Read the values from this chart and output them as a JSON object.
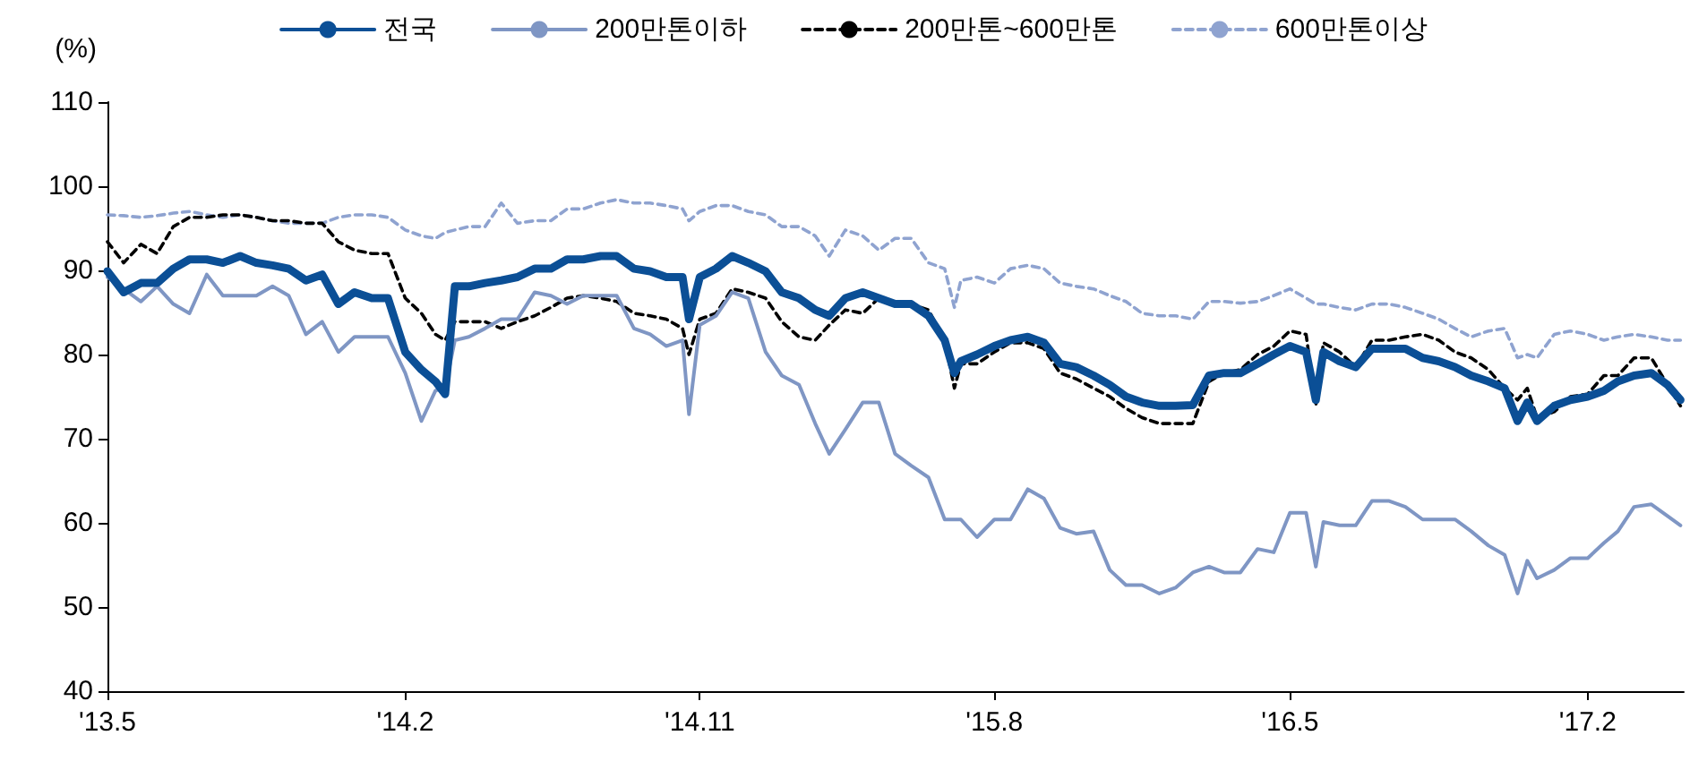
{
  "chart_data": {
    "type": "line",
    "ylabel": "(%)",
    "x": [
      "2013-05-01",
      "2013-05-16",
      "2013-06-01",
      "2013-06-16",
      "2013-07-01",
      "2013-07-16",
      "2013-08-01",
      "2013-08-16",
      "2013-09-01",
      "2013-09-16",
      "2013-10-01",
      "2013-10-16",
      "2013-11-01",
      "2013-11-16",
      "2013-12-01",
      "2013-12-16",
      "2014-01-01",
      "2014-01-16",
      "2014-02-01",
      "2014-02-16",
      "2014-03-01",
      "2014-03-10",
      "2014-03-19",
      "2014-04-01",
      "2014-04-16",
      "2014-05-01",
      "2014-05-16",
      "2014-06-01",
      "2014-06-16",
      "2014-07-01",
      "2014-07-16",
      "2014-08-01",
      "2014-08-16",
      "2014-09-01",
      "2014-09-16",
      "2014-10-01",
      "2014-10-16",
      "2014-10-22",
      "2014-11-01",
      "2014-11-16",
      "2014-12-01",
      "2014-12-16",
      "2015-01-01",
      "2015-01-16",
      "2015-02-01",
      "2015-02-16",
      "2015-03-01",
      "2015-03-16",
      "2015-04-01",
      "2015-04-16",
      "2015-05-01",
      "2015-05-16",
      "2015-06-01",
      "2015-06-16",
      "2015-06-25",
      "2015-07-01",
      "2015-07-16",
      "2015-08-01",
      "2015-08-16",
      "2015-09-01",
      "2015-09-16",
      "2015-10-01",
      "2015-10-16",
      "2015-11-01",
      "2015-11-16",
      "2015-12-01",
      "2015-12-16",
      "2016-01-01",
      "2016-01-16",
      "2016-02-01",
      "2016-02-16",
      "2016-03-01",
      "2016-03-16",
      "2016-04-01",
      "2016-04-16",
      "2016-05-01",
      "2016-05-16",
      "2016-05-25",
      "2016-06-01",
      "2016-06-16",
      "2016-07-01",
      "2016-07-16",
      "2016-08-01",
      "2016-08-16",
      "2016-09-01",
      "2016-09-16",
      "2016-10-01",
      "2016-10-16",
      "2016-11-01",
      "2016-11-16",
      "2016-11-28",
      "2016-12-07",
      "2016-12-16",
      "2017-01-01",
      "2017-01-16",
      "2017-02-01",
      "2017-02-16",
      "2017-03-01",
      "2017-03-16",
      "2017-04-01",
      "2017-04-16",
      "2017-04-28"
    ],
    "series": [
      {
        "name": "전국",
        "color": "#0b4f96",
        "line_style": "solid",
        "values": [
          89.9,
          87.4,
          88.5,
          88.5,
          90.2,
          91.3,
          91.3,
          90.9,
          91.7,
          90.9,
          90.6,
          90.2,
          88.8,
          89.5,
          86,
          87.4,
          86.7,
          86.7,
          80.3,
          78.2,
          76.8,
          75.3,
          88.1,
          88.1,
          88.5,
          88.8,
          89.2,
          90.2,
          90.2,
          91.3,
          91.3,
          91.7,
          91.7,
          90.2,
          89.9,
          89.2,
          89.2,
          84.2,
          89.2,
          90.2,
          91.7,
          90.9,
          89.9,
          87.4,
          86.7,
          85.3,
          84.6,
          86.7,
          87.4,
          86.7,
          86,
          86,
          84.6,
          81.7,
          77.8,
          79.2,
          80,
          81,
          81.7,
          82.1,
          81.4,
          78.9,
          78.5,
          77.5,
          76.4,
          75,
          74.3,
          73.9,
          73.9,
          74,
          77.5,
          77.8,
          77.8,
          78.9,
          80,
          81,
          80.3,
          74.6,
          80.3,
          79.2,
          78.5,
          80.7,
          80.7,
          80.7,
          79.6,
          79.2,
          78.5,
          77.5,
          76.8,
          76,
          72.1,
          74.3,
          72.1,
          73.9,
          74.6,
          75,
          75.7,
          76.8,
          77.5,
          77.8,
          76.4,
          74.6
        ]
      },
      {
        "name": "200만톤이하",
        "color": "#7f96c4",
        "line_style": "solid",
        "values": [
          89.2,
          87.8,
          86.3,
          88.1,
          86,
          84.9,
          89.5,
          87,
          87,
          87,
          88.1,
          87,
          82.4,
          83.9,
          80.3,
          82.1,
          82.1,
          82.1,
          77.8,
          72.1,
          75.7,
          76.1,
          81.7,
          82.1,
          83.1,
          84.2,
          84.2,
          87.4,
          87,
          86,
          87,
          87,
          87,
          83.1,
          82.4,
          81,
          81.7,
          72.9,
          83.5,
          84.6,
          87.4,
          86.7,
          80.3,
          77.5,
          76.4,
          71.8,
          68.2,
          71.1,
          74.3,
          74.3,
          68.2,
          66.8,
          65.4,
          60.4,
          60.4,
          60.4,
          58.3,
          60.4,
          60.4,
          64,
          62.9,
          59.4,
          58.7,
          59,
          54.4,
          52.6,
          52.6,
          51.6,
          52.3,
          54.1,
          54.8,
          54.1,
          54.1,
          56.9,
          56.5,
          61.2,
          61.2,
          54.8,
          60.1,
          59.7,
          59.7,
          62.6,
          62.6,
          61.9,
          60.4,
          60.4,
          60.4,
          59,
          57.3,
          56.2,
          51.6,
          55.5,
          53.4,
          54.4,
          55.8,
          55.8,
          57.6,
          59,
          61.9,
          62.2,
          60.8,
          59.7
        ]
      },
      {
        "name": "200만톤~600만톤",
        "color": "#000000",
        "line_style": "dashed",
        "values": [
          93.4,
          90.9,
          93.1,
          92,
          95.2,
          96.3,
          96.3,
          96.6,
          96.6,
          96.3,
          95.9,
          95.9,
          95.6,
          95.6,
          93.4,
          92.4,
          92,
          92,
          86.7,
          84.9,
          82.4,
          81.7,
          83.9,
          83.9,
          83.9,
          83.1,
          83.9,
          84.6,
          85.6,
          86.7,
          87,
          86.7,
          86.3,
          84.9,
          84.6,
          84.2,
          83.1,
          80,
          84.2,
          84.9,
          87.8,
          87.4,
          86.7,
          83.9,
          82.1,
          81.7,
          83.5,
          85.3,
          84.9,
          86.7,
          86.3,
          86,
          85.3,
          81.7,
          76,
          78.9,
          78.9,
          80.3,
          81.4,
          81.4,
          80.7,
          77.8,
          77.1,
          76,
          75,
          73.6,
          72.5,
          71.8,
          71.8,
          71.8,
          76.8,
          77.8,
          78.2,
          80,
          81,
          82.8,
          82.4,
          73.9,
          81.4,
          80.3,
          78.5,
          81.7,
          81.7,
          82.1,
          82.4,
          81.7,
          80.3,
          79.6,
          78.2,
          76,
          74.6,
          76,
          72.5,
          73.2,
          75,
          75.3,
          77.5,
          77.5,
          79.6,
          79.6,
          76.4,
          73.9
        ]
      },
      {
        "name": "600만톤이상",
        "color": "#8fa3d0",
        "line_style": "dashed",
        "values": [
          96.6,
          96.5,
          96.3,
          96.5,
          96.8,
          97,
          96.6,
          96.3,
          96.6,
          96.3,
          95.9,
          95.6,
          95.6,
          95.6,
          96.3,
          96.6,
          96.6,
          96.3,
          94.8,
          94.1,
          93.8,
          94.5,
          94.8,
          95.2,
          95.2,
          98,
          95.6,
          95.9,
          95.9,
          97.3,
          97.3,
          98,
          98.4,
          98,
          98,
          97.7,
          97.3,
          95.9,
          97,
          97.7,
          97.7,
          97,
          96.6,
          95.2,
          95.2,
          94.1,
          91.7,
          94.8,
          94.1,
          92.4,
          93.8,
          93.8,
          90.9,
          90.2,
          85.6,
          88.8,
          89.2,
          88.5,
          90.2,
          90.6,
          90.2,
          88.5,
          88.1,
          87.8,
          87,
          86.3,
          84.9,
          84.6,
          84.6,
          84.2,
          86.3,
          86.3,
          86.1,
          86.3,
          87,
          87.8,
          86.7,
          86,
          86,
          85.6,
          85.3,
          86,
          86,
          85.6,
          84.9,
          84.2,
          83.1,
          82.1,
          82.8,
          83.1,
          79.6,
          80,
          79.6,
          82.4,
          82.8,
          82.4,
          81.7,
          82.1,
          82.4,
          82.1,
          81.7,
          81.7
        ]
      }
    ],
    "xlim": [
      "2013-05-01",
      "2017-05-01"
    ],
    "xticks": [
      {
        "value": "2013-05-01",
        "label": "'13.5"
      },
      {
        "value": "2014-02-01",
        "label": "'14.2"
      },
      {
        "value": "2014-11-01",
        "label": "'14.11"
      },
      {
        "value": "2015-08-01",
        "label": "'15.8"
      },
      {
        "value": "2016-05-01",
        "label": "'16.5"
      },
      {
        "value": "2017-02-01",
        "label": "'17.2"
      }
    ],
    "ylim": [
      40,
      110
    ],
    "yticks": [
      40,
      50,
      60,
      70,
      80,
      90,
      100,
      110
    ],
    "grid": false,
    "legend": "top",
    "marker": "none"
  }
}
